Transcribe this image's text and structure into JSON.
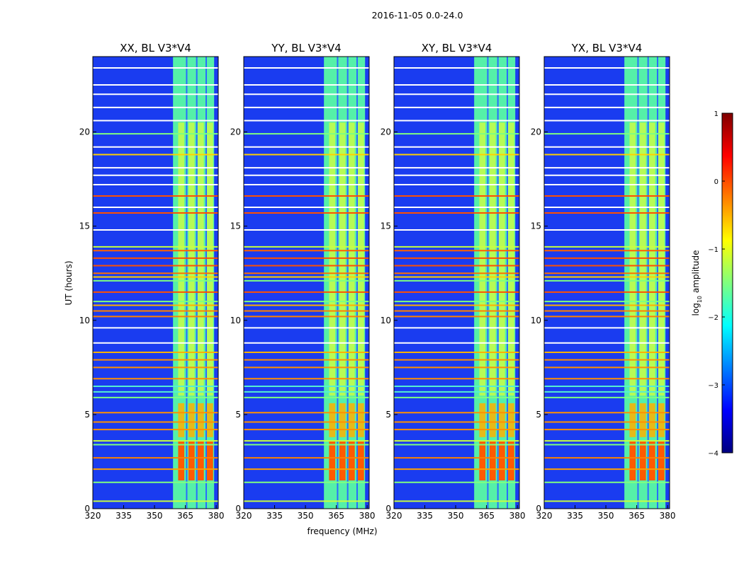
{
  "figure": {
    "suptitle": "2016-11-05 0.0-24.0"
  },
  "chart_data": [
    {
      "type": "heatmap",
      "title": "XX, BL V3*V4",
      "xlabel": "frequency (MHz)",
      "ylabel": "UT (hours)",
      "xlim": [
        320,
        381
      ],
      "ylim": [
        0,
        24
      ],
      "xticks": [
        320,
        335,
        350,
        365,
        380
      ],
      "yticks": [
        0,
        5,
        10,
        15,
        20
      ],
      "zlabel": "log10 amplitude",
      "zlim": [
        -4,
        1
      ]
    },
    {
      "type": "heatmap",
      "title": "YY, BL V3*V4",
      "xlabel": "frequency (MHz)",
      "ylabel": "UT (hours)",
      "xlim": [
        320,
        381
      ],
      "ylim": [
        0,
        24
      ],
      "xticks": [
        320,
        335,
        350,
        365,
        380
      ],
      "yticks": [
        0,
        5,
        10,
        15,
        20
      ],
      "zlabel": "log10 amplitude",
      "zlim": [
        -4,
        1
      ]
    },
    {
      "type": "heatmap",
      "title": "XY, BL V3*V4",
      "xlabel": "frequency (MHz)",
      "ylabel": "UT (hours)",
      "xlim": [
        320,
        381
      ],
      "ylim": [
        0,
        24
      ],
      "xticks": [
        320,
        335,
        350,
        365,
        380
      ],
      "yticks": [
        0,
        5,
        10,
        15,
        20
      ],
      "zlabel": "log10 amplitude",
      "zlim": [
        -4,
        1
      ]
    },
    {
      "type": "heatmap",
      "title": "YX, BL V3*V4",
      "xlabel": "frequency (MHz)",
      "ylabel": "UT (hours)",
      "xlim": [
        320,
        381
      ],
      "ylim": [
        0,
        24
      ],
      "xticks": [
        320,
        335,
        350,
        365,
        380
      ],
      "yticks": [
        0,
        5,
        10,
        15,
        20
      ],
      "zlabel": "log10 amplitude",
      "zlim": [
        -4,
        1
      ]
    }
  ],
  "shared": {
    "xlabel": "frequency (MHz)",
    "ylabel": "UT (hours)",
    "colorbar_label": "log",
    "colorbar_label_sub": "10",
    "colorbar_label_rest": " amplitude",
    "colorbar_ticks": [
      1,
      0,
      -1,
      -2,
      -3,
      -4
    ],
    "colorbar_tick_labels": [
      "1",
      "0",
      "−1",
      "−2",
      "−3",
      "−4"
    ]
  },
  "colors": {
    "colormap": "jet",
    "jet_stops": [
      "#00007f",
      "#0000ff",
      "#007fff",
      "#00ffff",
      "#7fff7f",
      "#ffff00",
      "#ff7f00",
      "#ff0000",
      "#7f0000"
    ],
    "background": "#ffffff"
  }
}
